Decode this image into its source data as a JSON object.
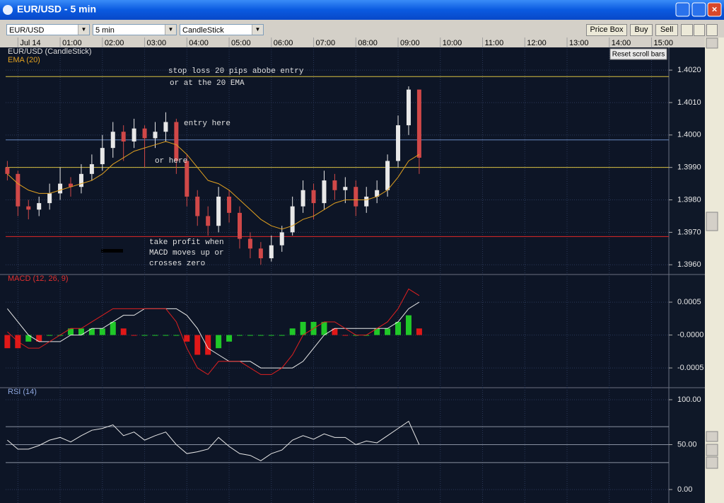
{
  "window": {
    "title": "EUR/USD - 5 min"
  },
  "toolbar": {
    "symbol": "EUR/USD",
    "interval": "5 min",
    "chart_type": "CandleStick",
    "buttons": [
      "Price Box",
      "Buy",
      "Sell"
    ]
  },
  "reset_button": "Reset scroll bars",
  "chart_data": [
    {
      "type": "candlestick",
      "title": "EUR/USD (CandleStick)",
      "title_color": "#dddddd",
      "x": [
        -0.25,
        0,
        0.25,
        0.5,
        0.75,
        1,
        1.25,
        1.5,
        1.75,
        2,
        2.25,
        2.5,
        2.75,
        3,
        3.25,
        3.5,
        3.75,
        4,
        4.25,
        4.5,
        4.75,
        5,
        5.25,
        5.5,
        5.75,
        6,
        6.25,
        6.5,
        6.75,
        7,
        7.25,
        7.5,
        7.75,
        8,
        8.25,
        8.5,
        8.75,
        9,
        9.25,
        9.5
      ],
      "open": [
        1.399,
        1.3988,
        1.3978,
        1.3977,
        1.3979,
        1.3982,
        1.3985,
        1.3984,
        1.3988,
        1.3991,
        1.3996,
        1.4001,
        1.3998,
        1.4002,
        1.3999,
        1.4001,
        1.4004,
        1.3992,
        1.3981,
        1.3975,
        1.3972,
        1.3981,
        1.3976,
        1.3968,
        1.3965,
        1.3962,
        1.3966,
        1.397,
        1.3978,
        1.3983,
        1.3979,
        1.3986,
        1.3983,
        1.3984,
        1.3978,
        1.3981,
        1.3983,
        1.3992,
        1.4003,
        1.4014
      ],
      "high": [
        1.3992,
        1.3989,
        1.398,
        1.3981,
        1.3985,
        1.399,
        1.3987,
        1.3991,
        1.3994,
        1.4,
        1.4004,
        1.4003,
        1.4005,
        1.4003,
        1.4004,
        1.4007,
        1.4005,
        1.3994,
        1.3983,
        1.3978,
        1.3984,
        1.3983,
        1.3978,
        1.397,
        1.3967,
        1.3969,
        1.3972,
        1.3981,
        1.3986,
        1.3985,
        1.3989,
        1.3988,
        1.3987,
        1.3986,
        1.3984,
        1.3986,
        1.3994,
        1.4006,
        1.4015,
        1.4014
      ],
      "low": [
        1.3986,
        1.3975,
        1.3974,
        1.3975,
        1.3977,
        1.398,
        1.3981,
        1.3982,
        1.3986,
        1.3989,
        1.3993,
        1.3992,
        1.3996,
        1.399,
        1.3996,
        1.3998,
        1.3988,
        1.3978,
        1.3972,
        1.3969,
        1.397,
        1.3973,
        1.3965,
        1.3962,
        1.396,
        1.3961,
        1.3964,
        1.3969,
        1.3976,
        1.3974,
        1.3977,
        1.398,
        1.3979,
        1.3975,
        1.3976,
        1.3979,
        1.3981,
        1.399,
        1.4,
        1.3988
      ],
      "close": [
        1.3988,
        1.3978,
        1.3977,
        1.3979,
        1.3982,
        1.3985,
        1.3984,
        1.3988,
        1.3991,
        1.3996,
        1.4001,
        1.3998,
        1.4002,
        1.3999,
        1.4001,
        1.4004,
        1.3992,
        1.3981,
        1.3975,
        1.3972,
        1.3981,
        1.3976,
        1.3968,
        1.3965,
        1.3962,
        1.3966,
        1.397,
        1.3978,
        1.3983,
        1.3979,
        1.3986,
        1.3983,
        1.3984,
        1.3978,
        1.3981,
        1.3983,
        1.3992,
        1.4003,
        1.4014,
        1.3993
      ],
      "up_color": "#e8e8e8",
      "down_color": "#d04848",
      "overlays": [
        {
          "name": "EMA (20)",
          "color": "#e0a020",
          "values": [
            1.3988,
            1.3985,
            1.3983,
            1.3982,
            1.3982,
            1.3983,
            1.3984,
            1.3985,
            1.3986,
            1.3988,
            1.3991,
            1.3993,
            1.3995,
            1.3996,
            1.3997,
            1.3998,
            1.3997,
            1.3994,
            1.399,
            1.3986,
            1.3985,
            1.3983,
            1.398,
            1.3977,
            1.3974,
            1.3972,
            1.3971,
            1.3972,
            1.3974,
            1.3975,
            1.3977,
            1.3979,
            1.398,
            1.398,
            1.398,
            1.3981,
            1.3983,
            1.3987,
            1.3992,
            1.3994
          ]
        }
      ],
      "hlines": [
        {
          "value": 1.4018,
          "color": "#d8c040"
        },
        {
          "value": 1.39985,
          "color": "#6a8ac0"
        },
        {
          "value": 1.399,
          "color": "#d8c040"
        },
        {
          "value": 1.39687,
          "color": "#e02828"
        }
      ],
      "annotations": [
        "stop loss 20 pips abobe entry",
        "or at the 20 EMA",
        "entry here",
        "or here",
        "take profit when",
        "MACD moves up or",
        "crosses zero"
      ],
      "xlim": [
        -0.29,
        15.41
      ],
      "xticks": [
        {
          "value": 0,
          "label": "Jul 14"
        },
        {
          "value": 1,
          "label": "01:00"
        },
        {
          "value": 2,
          "label": "02:00"
        },
        {
          "value": 3,
          "label": "03:00"
        },
        {
          "value": 4,
          "label": "04:00"
        },
        {
          "value": 5,
          "label": "05:00"
        },
        {
          "value": 6,
          "label": "06:00"
        },
        {
          "value": 7,
          "label": "07:00"
        },
        {
          "value": 8,
          "label": "08:00"
        },
        {
          "value": 9,
          "label": "09:00"
        },
        {
          "value": 10,
          "label": "10:00"
        },
        {
          "value": 11,
          "label": "11:00"
        },
        {
          "value": 12,
          "label": "12:00"
        },
        {
          "value": 13,
          "label": "13:00"
        },
        {
          "value": 14,
          "label": "14:00"
        },
        {
          "value": 15,
          "label": "15:00"
        }
      ],
      "ylim": [
        1.3957,
        1.4027
      ],
      "yticks": [
        {
          "value": 1.402,
          "label": "1.4020"
        },
        {
          "value": 1.401,
          "label": "1.4010"
        },
        {
          "value": 1.4,
          "label": "1.4000"
        },
        {
          "value": 1.399,
          "label": "1.3990"
        },
        {
          "value": 1.398,
          "label": "1.3980"
        },
        {
          "value": 1.397,
          "label": "1.3970"
        },
        {
          "value": 1.396,
          "label": "1.3960"
        }
      ],
      "grid": true
    },
    {
      "type": "macd",
      "title": "MACD (12, 26, 9)",
      "title_color": "#e03030",
      "macd": {
        "color": "#e02020",
        "values": [
          5e-05,
          -0.0001,
          -0.0002,
          -0.0002,
          -0.0001,
          0,
          0.0001,
          0.0001,
          0.0002,
          0.0003,
          0.0004,
          0.0004,
          0.0004,
          0.0004,
          0.0004,
          0.0004,
          0.0002,
          -0.0002,
          -0.0005,
          -0.0006,
          -0.0004,
          -0.0004,
          -0.0004,
          -0.0005,
          -0.0006,
          -0.0006,
          -0.0005,
          -0.0003,
          0,
          0.0001,
          0.0002,
          0.0002,
          0.0001,
          0,
          0,
          0.0001,
          0.0002,
          0.0004,
          0.0007,
          0.0006
        ]
      },
      "signal": {
        "color": "#e8e8e8",
        "values": [
          0.0004,
          0.0002,
          0,
          -0.0001,
          -0.0001,
          -0.0001,
          0,
          0,
          0.0001,
          0.0001,
          0.0002,
          0.0003,
          0.0003,
          0.0004,
          0.0004,
          0.0004,
          0.0004,
          0.0003,
          0.0001,
          -0.0002,
          -0.0003,
          -0.0004,
          -0.0004,
          -0.0004,
          -0.0005,
          -0.0005,
          -0.0005,
          -0.0005,
          -0.0004,
          -0.0002,
          0,
          0.0001,
          0.0001,
          0.0001,
          0.0001,
          0.0001,
          0.0001,
          0.0002,
          0.0004,
          0.0005
        ]
      },
      "histogram": {
        "up_color": "#20c828",
        "down_color": "#e01818",
        "values": [
          -0.0002,
          -0.0002,
          -0.0001,
          -0.0001,
          0,
          0,
          0.0001,
          0.0001,
          0.0001,
          0.0001,
          0.0002,
          0.0001,
          0,
          0,
          0,
          0,
          0,
          -0.0001,
          -0.0003,
          -0.0003,
          -0.0002,
          -0.0001,
          0,
          0,
          0,
          0,
          0,
          0.0001,
          0.0002,
          0.0002,
          0.0002,
          0.0001,
          0,
          0,
          0,
          0.0001,
          0.0001,
          0.0002,
          0.0003,
          0.0001
        ]
      },
      "ylim": [
        -0.0008,
        0.00092
      ],
      "yticks": [
        0.0005,
        {
          "value": 0,
          "label": "-0.0000"
        },
        -0.0005
      ],
      "grid": true
    },
    {
      "type": "line",
      "title": "RSI (14)",
      "title_color": "#8fa8e0",
      "color": "#e8e8e8",
      "values": [
        55,
        45,
        45,
        49,
        55,
        58,
        53,
        60,
        66,
        68,
        72,
        60,
        64,
        55,
        60,
        64,
        50,
        40,
        42,
        45,
        58,
        48,
        40,
        38,
        32,
        40,
        44,
        55,
        60,
        56,
        62,
        58,
        58,
        50,
        54,
        52,
        60,
        68,
        76,
        50
      ],
      "ylim": [
        -15,
        113.4
      ],
      "yticks": [
        {
          "value": 100,
          "label": "100.00"
        },
        {
          "value": 50,
          "label": "50.00"
        },
        {
          "value": 0,
          "label": "0.00"
        }
      ],
      "levels": [
        30,
        50,
        70
      ],
      "grid": true
    }
  ]
}
